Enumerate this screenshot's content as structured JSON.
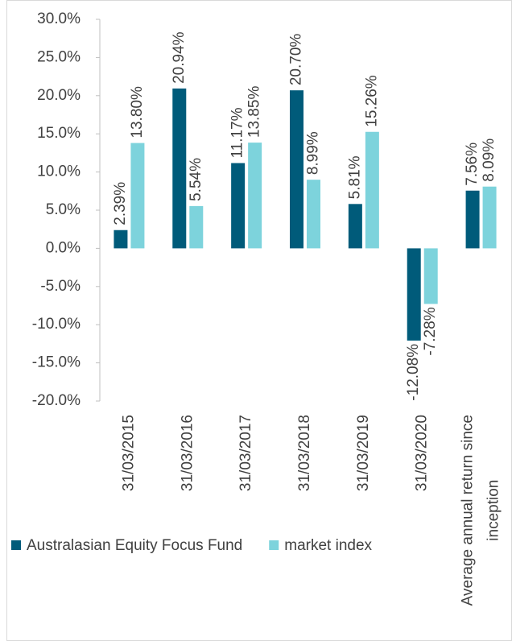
{
  "chart_data": {
    "type": "bar",
    "categories": [
      "31/03/2015",
      "31/03/2016",
      "31/03/2017",
      "31/03/2018",
      "31/03/2019",
      "31/03/2020",
      "Average annual return since inception"
    ],
    "series": [
      {
        "name": "Australasian Equity Focus Fund",
        "color": "#005b7a",
        "values": [
          2.39,
          20.94,
          11.17,
          20.7,
          5.81,
          -12.08,
          7.56
        ],
        "value_labels": [
          "2.39%",
          "20.94%",
          "11.17%",
          "20.70%",
          "5.81%",
          "-12.08%",
          "7.56%"
        ]
      },
      {
        "name": "market index",
        "color": "#7dd3dc",
        "values": [
          13.8,
          5.54,
          13.85,
          8.99,
          15.26,
          -7.28,
          8.09
        ],
        "value_labels": [
          "13.80%",
          "5.54%",
          "13.85%",
          "8.99%",
          "15.26%",
          "-7.28%",
          "8.09%"
        ]
      }
    ],
    "ylim": [
      -20,
      30
    ],
    "yticks": [
      {
        "value": -20,
        "label": "-20.0%"
      },
      {
        "value": -15,
        "label": "-15.0%"
      },
      {
        "value": -10,
        "label": "-10.0%"
      },
      {
        "value": -5,
        "label": "-5.0%"
      },
      {
        "value": 0,
        "label": "0.0%"
      },
      {
        "value": 5,
        "label": "5.0%"
      },
      {
        "value": 10,
        "label": "10.0%"
      },
      {
        "value": 15,
        "label": "15.0%"
      },
      {
        "value": 20,
        "label": "20.0%"
      },
      {
        "value": 25,
        "label": "25.0%"
      },
      {
        "value": 30,
        "label": "30.0%"
      }
    ],
    "legend": "bottom"
  }
}
